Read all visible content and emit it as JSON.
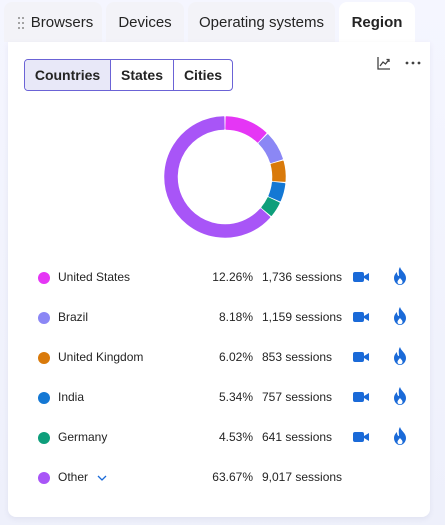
{
  "tabs": [
    {
      "label": "Browsers",
      "active": false
    },
    {
      "label": "Devices",
      "active": false
    },
    {
      "label": "Operating systems",
      "active": false
    },
    {
      "label": "Region",
      "active": true
    }
  ],
  "segmented": {
    "options": [
      "Countries",
      "States",
      "Cities"
    ],
    "selected": "Countries"
  },
  "toolbar": {
    "chart_icon": "line-chart-icon",
    "more_icon": "more-horizontal-icon"
  },
  "chart_data": {
    "type": "pie",
    "style": "donut",
    "categories": [
      "United States",
      "Brazil",
      "United Kingdom",
      "India",
      "Germany",
      "Other"
    ],
    "values": [
      12.26,
      8.18,
      6.02,
      5.34,
      4.53,
      63.67
    ],
    "colors": [
      "#e536f5",
      "#8b87f5",
      "#d97a0b",
      "#1478d4",
      "#0e9e7b",
      "#a855f7"
    ]
  },
  "legend": [
    {
      "name": "United States",
      "percent": "12.26%",
      "sessions": "1,736 sessions",
      "color": "#e536f5",
      "has_actions": true
    },
    {
      "name": "Brazil",
      "percent": "8.18%",
      "sessions": "1,159 sessions",
      "color": "#8b87f5",
      "has_actions": true
    },
    {
      "name": "United Kingdom",
      "percent": "6.02%",
      "sessions": "853 sessions",
      "color": "#d97a0b",
      "has_actions": true
    },
    {
      "name": "India",
      "percent": "5.34%",
      "sessions": "757 sessions",
      "color": "#1478d4",
      "has_actions": true
    },
    {
      "name": "Germany",
      "percent": "4.53%",
      "sessions": "641 sessions",
      "color": "#0e9e7b",
      "has_actions": true
    },
    {
      "name": "Other",
      "percent": "63.67%",
      "sessions": "9,017 sessions",
      "color": "#a855f7",
      "has_actions": false,
      "expandable": true
    }
  ],
  "icons": {
    "recording": "video-camera-icon",
    "heatmap": "flame-icon",
    "expand": "chevron-down-icon",
    "drag": "drag-grip-icon"
  }
}
